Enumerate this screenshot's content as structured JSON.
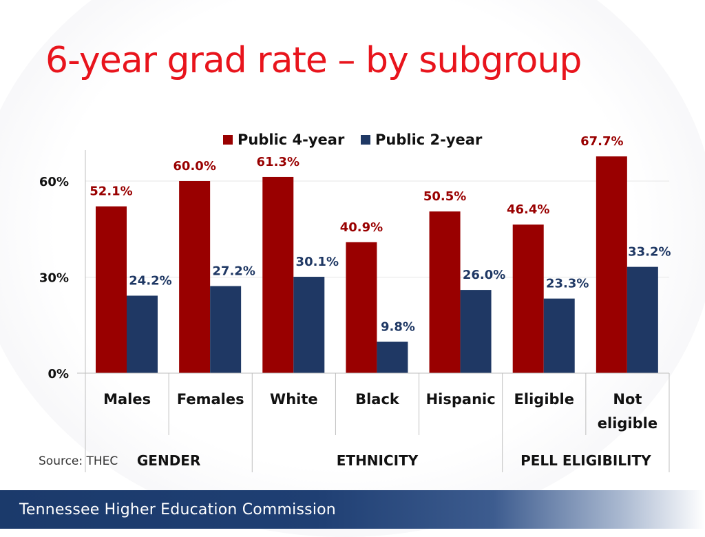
{
  "slide": {
    "title": "6-year grad rate – by subgroup",
    "source": "Source: THEC",
    "footer": "Tennessee Higher Education Commission"
  },
  "colors": {
    "title": "#e8141c",
    "series_4yr": "#990000",
    "series_2yr": "#1f3864",
    "label_4yr": "#990000",
    "label_2yr": "#1f3864"
  },
  "chart_data": {
    "type": "bar",
    "title": "",
    "ylabel": "",
    "xlabel": "",
    "ylim": [
      0,
      70
    ],
    "yticks": [
      0,
      30,
      60
    ],
    "ytick_labels": [
      "0%",
      "30%",
      "60%"
    ],
    "legend_position": "top-center",
    "grid": true,
    "categories": [
      "Males",
      "Females",
      "White",
      "Black",
      "Hispanic",
      "Eligible",
      "Not\neligible"
    ],
    "groups": [
      {
        "label": "GENDER",
        "span": [
          0,
          1
        ]
      },
      {
        "label": "ETHNICITY",
        "span": [
          2,
          4
        ]
      },
      {
        "label": "PELL ELIGIBILITY",
        "span": [
          5,
          6
        ]
      }
    ],
    "series": [
      {
        "name": "Public 4-year",
        "values": [
          52.1,
          60.0,
          61.3,
          40.9,
          50.5,
          46.4,
          67.7
        ],
        "labels": [
          "52.1%",
          "60.0%",
          "61.3%",
          "40.9%",
          "50.5%",
          "46.4%",
          "67.7%"
        ]
      },
      {
        "name": "Public 2-year",
        "values": [
          24.2,
          27.2,
          30.1,
          9.8,
          26.0,
          23.3,
          33.2
        ],
        "labels": [
          "24.2%",
          "27.2%",
          "30.1%",
          "9.8%",
          "26.0%",
          "23.3%",
          "33.2%"
        ]
      }
    ]
  }
}
